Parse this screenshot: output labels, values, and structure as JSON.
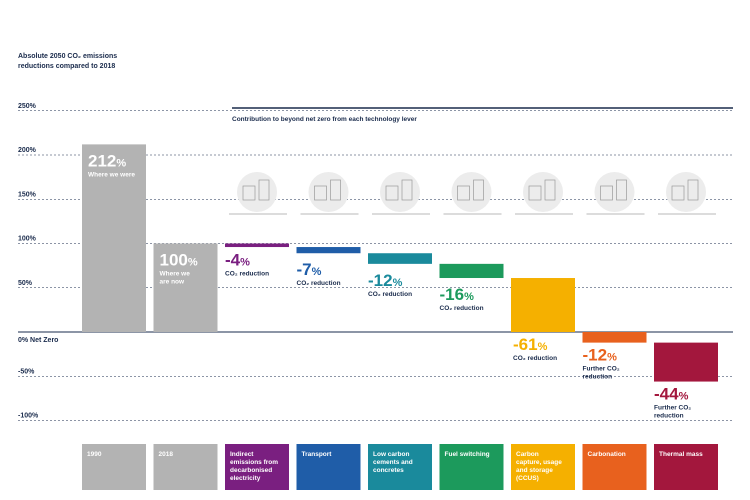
{
  "chart_data": {
    "type": "bar",
    "title": [
      "Absolute 2050 CO₂ emissions",
      "reductions compared to 2018"
    ],
    "subtitle": "Contribution to beyond net zero from each technology lever",
    "y_ticks": [
      "250%",
      "200%",
      "150%",
      "100%",
      "50%",
      "0% Net Zero",
      "-50%",
      "-100%"
    ],
    "ylim": [
      -100,
      250
    ],
    "categories": [
      "1990",
      "2018",
      "Indirect emissions from decarbonised electricity",
      "Transport",
      "Low carbon cements and concretes",
      "Fuel switching",
      "Carbon capture, usage and storage (CCUS)",
      "Carbonation",
      "Thermal mass"
    ],
    "category_lines": [
      [
        "1990"
      ],
      [
        "2018"
      ],
      [
        "Indirect",
        "emissions from",
        "decarbonised",
        "electricity"
      ],
      [
        "Transport"
      ],
      [
        "Low carbon",
        "cements and",
        "concretes"
      ],
      [
        "Fuel switching"
      ],
      [
        "Carbon",
        "capture, usage",
        "and storage",
        "(CCUS)"
      ],
      [
        "Carbonation"
      ],
      [
        "Thermal mass"
      ]
    ],
    "series": [
      {
        "values": [
          212,
          100,
          -4,
          -7,
          -12,
          -16,
          -61,
          -12,
          -44
        ]
      }
    ],
    "bar_start": [
      0,
      0,
      100,
      96,
      89,
      77,
      61,
      0,
      -12
    ],
    "value_labels": [
      "212",
      "100",
      "-4",
      "-7",
      "-12",
      "-16",
      "-61",
      "-12",
      "-44"
    ],
    "sub_labels": [
      [
        "Where we were"
      ],
      [
        "Where we",
        "are now"
      ],
      [
        "CO₂ reduction"
      ],
      [
        "CO₂ reduction"
      ],
      [
        "CO₂ reduction"
      ],
      [
        "CO₂ reduction"
      ],
      [
        "CO₂ reduction"
      ],
      [
        "Further CO₂",
        "reduction"
      ],
      [
        "Further CO₂",
        "reduction"
      ]
    ],
    "colors": [
      "#b3b3b3",
      "#b3b3b3",
      "#7a1f80",
      "#1f5da8",
      "#1a8a9c",
      "#1c9a5c",
      "#f5b000",
      "#e8611e",
      "#a3173d"
    ],
    "text_colors": [
      "#ffffff",
      "#ffffff",
      "#7a1f80",
      "#1f5da8",
      "#1a8a9c",
      "#1c9a5c",
      "#f5b000",
      "#e8611e",
      "#a3173d"
    ],
    "gridlines": "dashed"
  }
}
